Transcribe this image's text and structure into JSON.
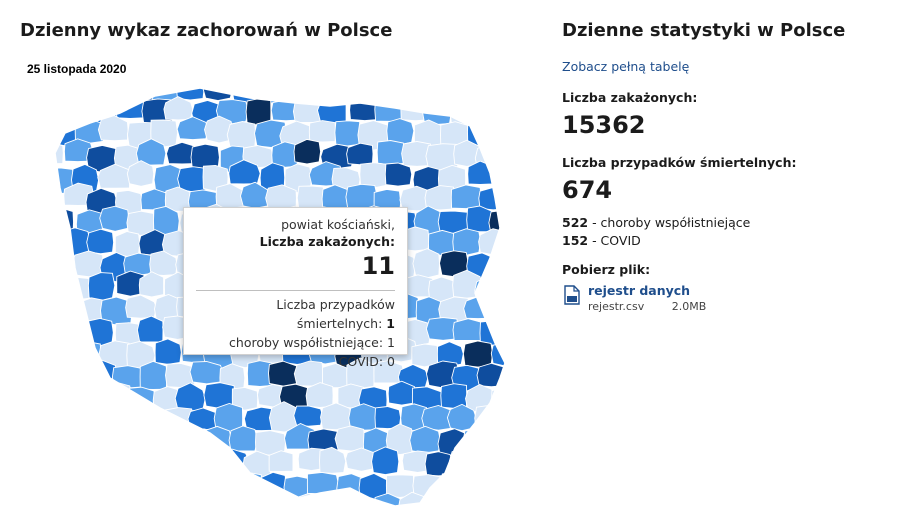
{
  "map_panel": {
    "title": "Dzienny wykaz zachorowań w Polsce",
    "date": "25 listopada 2020"
  },
  "tooltip": {
    "district": "powiat kościański,",
    "cases_label": "Liczba zakażonych:",
    "cases_value": "11",
    "deaths_label": "Liczba przypadków śmiertelnych:",
    "deaths_value": "1",
    "comorbid_label": "choroby współistniejące:",
    "comorbid_value": "1",
    "covid_label": "COVID:",
    "covid_value": "0"
  },
  "stats": {
    "title": "Dzienne statystyki w Polsce",
    "full_table_link": "Zobacz pełną tabelę",
    "infected_label": "Liczba zakażonych:",
    "infected_value": "15362",
    "deaths_label": "Liczba przypadków śmiertelnych:",
    "deaths_value": "674",
    "comorbid_value": "522",
    "comorbid_label": "- choroby współistniejące",
    "covid_value": "152",
    "covid_label": "- COVID",
    "download_label": "Pobierz plik:",
    "file_link": "rejestr danych",
    "file_name": "rejestr.csv",
    "file_size": "2.0MB"
  },
  "colors": {
    "level_1": "#d6e6f8",
    "level_2": "#5aa3ec",
    "level_3": "#1f74d6",
    "level_4": "#0f4d9e",
    "level_5": "#0a2e5c",
    "link": "#1f4e8c"
  },
  "icons": {
    "file": "document-icon"
  }
}
